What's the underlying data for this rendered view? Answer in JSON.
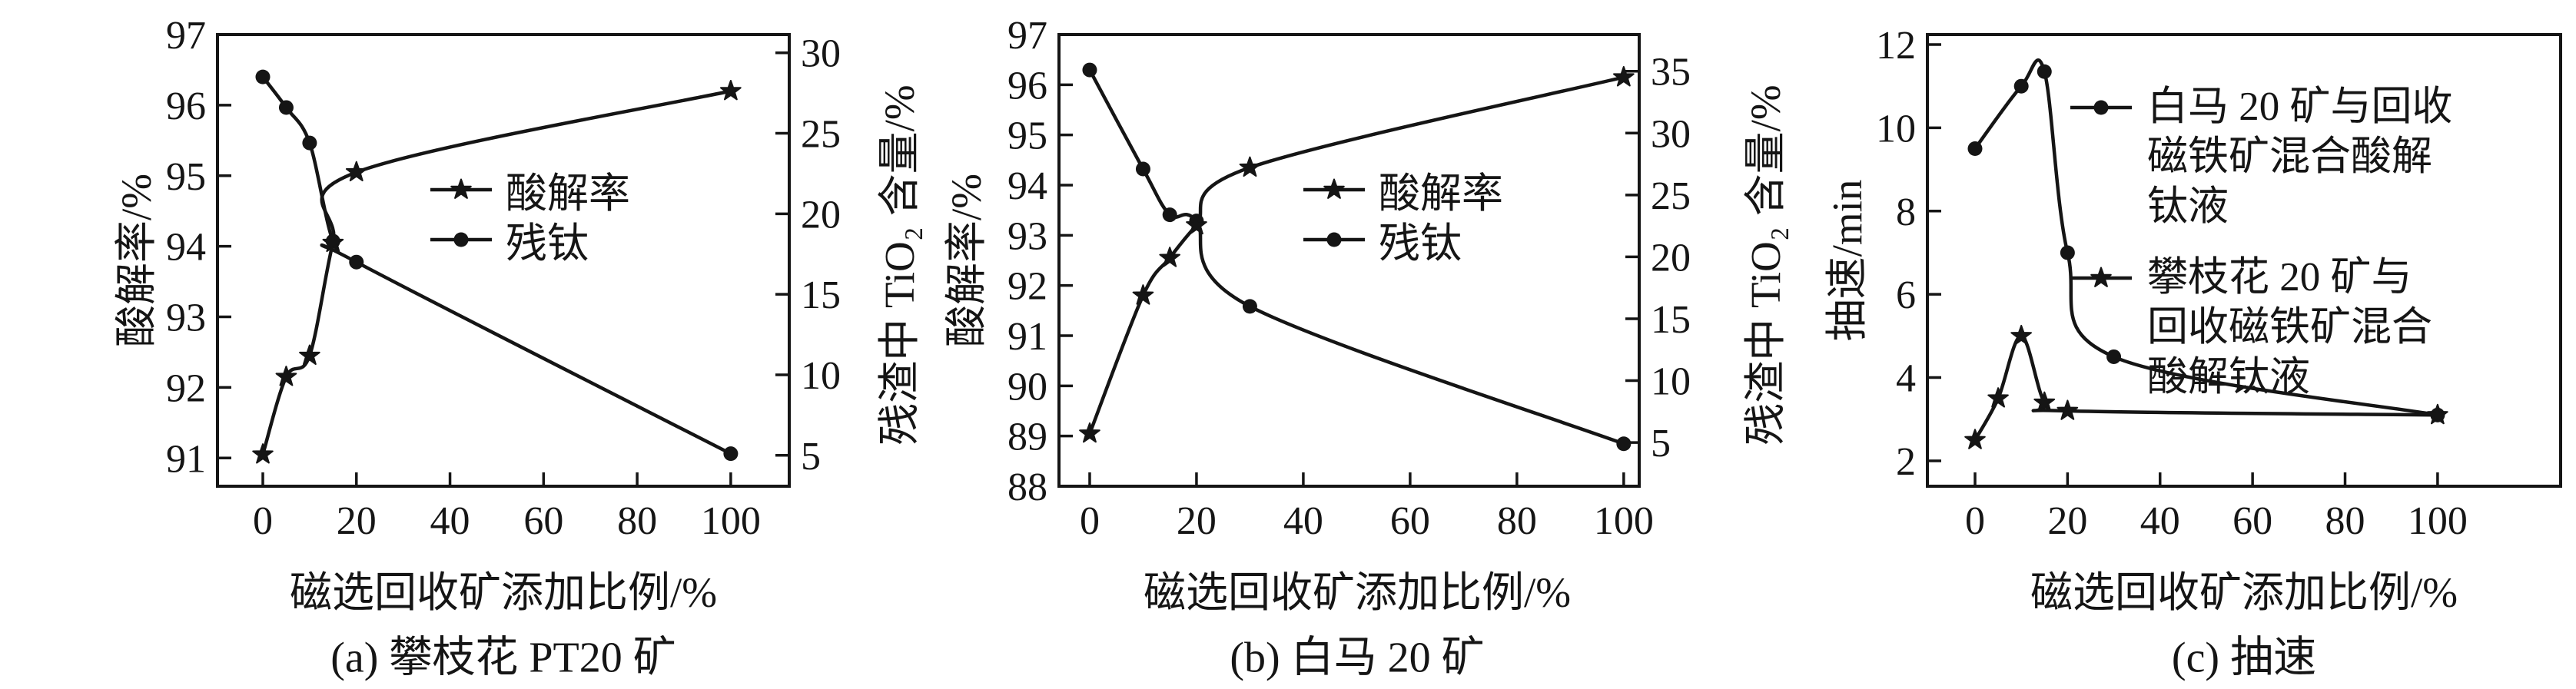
{
  "figure": {
    "background": "#ffffff",
    "ink": "#151515"
  },
  "chart_data": [
    {
      "type": "line",
      "panel": "a",
      "title": "(a) 攀枝花 PT20 矿",
      "xlabel": "磁选回收矿添加比例/%",
      "ylabel_left": "酸解率/%",
      "ylabel_right": "残渣中 TiO₂ 含量/%",
      "xlim": [
        -9.69,
        112.5
      ],
      "xticks": [
        0,
        20,
        40,
        60,
        80,
        100
      ],
      "ylim_left": [
        90.6,
        97
      ],
      "yticks_left": [
        91,
        92,
        93,
        94,
        95,
        96,
        97
      ],
      "ylim_right": [
        3.08,
        31.13
      ],
      "yticks_right": [
        5,
        10,
        15,
        20,
        25,
        30
      ],
      "grid": false,
      "legend_position": "inside center",
      "series": [
        {
          "name": "残钛",
          "axis": "right",
          "marker": "circle",
          "x": [
            0,
            5,
            10,
            15,
            20,
            100
          ],
          "y": [
            28.5,
            26.6,
            24.4,
            18.3,
            17.0,
            5.1
          ]
        },
        {
          "name": "酸解率",
          "axis": "left",
          "marker": "star",
          "x": [
            0,
            5,
            10,
            15,
            20,
            100
          ],
          "y": [
            91.05,
            92.15,
            92.45,
            94.05,
            95.05,
            96.2
          ]
        }
      ]
    },
    {
      "type": "line",
      "panel": "b",
      "title": "(b) 白马 20 矿",
      "xlabel": "磁选回收矿添加比例/%",
      "ylabel_left": "酸解率/%",
      "ylabel_right": "残渣中 TiO₂ 含量/%",
      "xlim": [
        -5.75,
        102.9
      ],
      "xticks": [
        0,
        20,
        40,
        60,
        80,
        100
      ],
      "ylim_left": [
        88,
        97
      ],
      "yticks_left": [
        88,
        89,
        90,
        91,
        92,
        93,
        94,
        95,
        96,
        97
      ],
      "ylim_right": [
        1.47,
        37.96
      ],
      "yticks_right": [
        5,
        10,
        15,
        20,
        25,
        30,
        35
      ],
      "grid": false,
      "legend_position": "inside center",
      "series": [
        {
          "name": "残钛",
          "axis": "right",
          "marker": "circle",
          "x": [
            0,
            10,
            15,
            20,
            30,
            100
          ],
          "y": [
            35.1,
            27.1,
            23.4,
            22.9,
            16.0,
            4.9
          ]
        },
        {
          "name": "酸解率",
          "axis": "left",
          "marker": "star",
          "x": [
            0,
            10,
            15,
            20,
            30,
            100
          ],
          "y": [
            89.05,
            91.8,
            92.55,
            93.2,
            94.35,
            96.15
          ]
        }
      ]
    },
    {
      "type": "line",
      "panel": "c",
      "title": "(c) 抽速",
      "xlabel": "磁选回收矿添加比例/%",
      "ylabel_left": "抽速/min",
      "xlim": [
        -10.3,
        126.6
      ],
      "xticks": [
        0,
        20,
        40,
        60,
        80,
        100
      ],
      "ylim_left": [
        1.39,
        12.24
      ],
      "yticks_left": [
        2,
        4,
        6,
        8,
        10,
        12
      ],
      "grid": false,
      "legend_position": "inside right",
      "series": [
        {
          "name": "白马 20 矿与回收磁铁矿混合酸解钛液",
          "axis": "left",
          "marker": "circle",
          "legend_lines": [
            "白马 20 矿与回收",
            "磁铁矿混合酸解",
            "钛液"
          ],
          "x": [
            0,
            10,
            15,
            20,
            30,
            100
          ],
          "y": [
            9.5,
            11.0,
            11.35,
            7.0,
            4.5,
            3.1
          ]
        },
        {
          "name": "攀枝花 20 矿与回收磁铁矿混合酸解钛液",
          "axis": "left",
          "marker": "star",
          "legend_lines": [
            "攀枝花 20 矿与",
            "回收磁铁矿混合",
            "酸解钛液"
          ],
          "x": [
            0,
            5,
            10,
            15,
            20,
            100
          ],
          "y": [
            2.5,
            3.5,
            5.0,
            3.4,
            3.2,
            3.1
          ]
        }
      ]
    }
  ]
}
